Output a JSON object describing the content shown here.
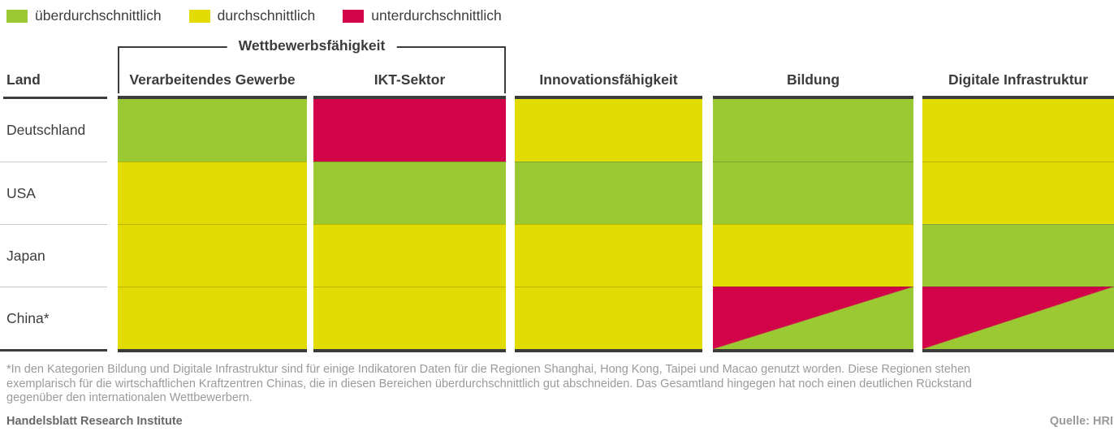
{
  "legend": {
    "items": [
      {
        "label": "überdurchschnittlich",
        "color": "#9BC934"
      },
      {
        "label": "durchschnittlich",
        "color": "#E3DC04"
      },
      {
        "label": "unterdurchschnittlich",
        "color": "#D20349"
      }
    ]
  },
  "table": {
    "group_header": "Wettbewerbsfähigkeit",
    "land_header": "Land",
    "columns": [
      "Verarbeitendes Gewerbe",
      "IKT-Sektor",
      "Innovationsfähigkeit",
      "Bildung",
      "Digitale Infrastruktur"
    ],
    "rows": [
      {
        "land": "Deutschland",
        "values": [
          "above",
          "below",
          "average",
          "above",
          "average"
        ]
      },
      {
        "land": "USA",
        "values": [
          "average",
          "above",
          "above",
          "above",
          "average"
        ]
      },
      {
        "land": "Japan",
        "values": [
          "average",
          "average",
          "average",
          "average",
          "above"
        ]
      },
      {
        "land": "China*",
        "values": [
          "average",
          "average",
          "average",
          "split",
          "split"
        ]
      }
    ]
  },
  "chart_data": {
    "type": "heatmap",
    "title": "",
    "rows": [
      "Deutschland",
      "USA",
      "Japan",
      "China*"
    ],
    "columns": [
      "Verarbeitendes Gewerbe",
      "IKT-Sektor",
      "Innovationsfähigkeit",
      "Bildung",
      "Digitale Infrastruktur"
    ],
    "column_groups": [
      {
        "label": "Wettbewerbsfähigkeit",
        "columns": [
          "Verarbeitendes Gewerbe",
          "IKT-Sektor"
        ]
      }
    ],
    "scale": {
      "überdurchschnittlich": "#9BC934",
      "durchschnittlich": "#E3DC04",
      "unterdurchschnittlich": "#D20349"
    },
    "values": [
      [
        "überdurchschnittlich",
        "unterdurchschnittlich",
        "durchschnittlich",
        "überdurchschnittlich",
        "durchschnittlich"
      ],
      [
        "durchschnittlich",
        "überdurchschnittlich",
        "überdurchschnittlich",
        "überdurchschnittlich",
        "durchschnittlich"
      ],
      [
        "durchschnittlich",
        "durchschnittlich",
        "durchschnittlich",
        "durchschnittlich",
        "überdurchschnittlich"
      ],
      [
        "durchschnittlich",
        "durchschnittlich",
        "durchschnittlich",
        "unterdurchschnittlich/überdurchschnittlich (diagonal geteilt)",
        "unterdurchschnittlich/überdurchschnittlich (diagonal geteilt)"
      ]
    ],
    "legend_position": "top"
  },
  "footnote": {
    "lines": [
      "*In den Kategorien Bildung und Digitale Infrastruktur sind für einige Indikatoren Daten für die Regionen Shanghai, Hong Kong, Taipei und Macao genutzt worden. Diese Regionen stehen",
      "exemplarisch für die wirtschaftlichen Kraftzentren Chinas, die in diesen Bereichen überdurchschnittlich gut abschneiden. Das Gesamtland hingegen hat noch einen deutlichen Rückstand",
      "gegenüber den internationalen Wettbewerbern."
    ]
  },
  "credit": "Handelsblatt Research Institute",
  "source": "Quelle: HRI"
}
